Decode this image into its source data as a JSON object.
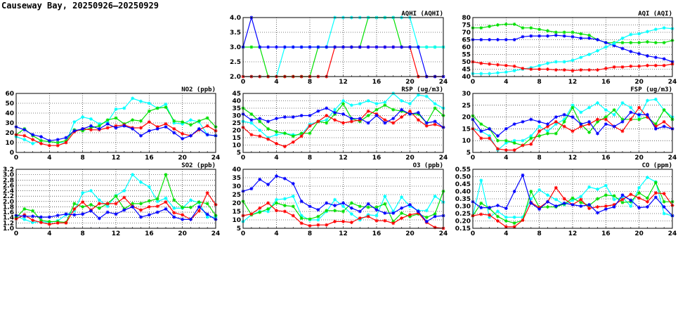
{
  "title": "Causeway Bay, 20250926–20250929",
  "chart_data": [
    {
      "id": "aqhi",
      "type": "line",
      "title": "AQHI (AQHI)",
      "ylim": [
        2,
        4
      ],
      "yticks": [
        "2.0",
        "2.5",
        "3.0",
        "3.5",
        "4.0"
      ],
      "xticks": [
        "0",
        "4",
        "8",
        "12",
        "16",
        "20",
        "24"
      ],
      "xlim": [
        0,
        24
      ],
      "series": [
        {
          "color": "#00e000",
          "values": [
            3,
            3,
            3,
            2,
            2,
            2,
            2,
            2,
            2,
            3,
            3,
            3,
            3,
            3,
            3,
            4,
            4,
            4,
            4,
            3,
            3,
            3,
            3,
            3,
            3
          ]
        },
        {
          "color": "#00ffff",
          "values": [
            2,
            2,
            2,
            2,
            2,
            3,
            3,
            3,
            3,
            3,
            3,
            4,
            4,
            4,
            4,
            4,
            4,
            4,
            4,
            4,
            4,
            3,
            3,
            3,
            3
          ]
        },
        {
          "color": "#ff0000",
          "values": [
            2,
            2,
            2,
            2,
            2,
            2,
            2,
            2,
            2,
            2,
            2,
            3,
            3,
            3,
            3,
            3,
            3,
            3,
            3,
            3,
            3,
            2,
            2,
            2,
            2
          ]
        },
        {
          "color": "#0000ff",
          "values": [
            3,
            4,
            3,
            3,
            3,
            3,
            3,
            3,
            3,
            3,
            3,
            3,
            3,
            3,
            3,
            3,
            3,
            3,
            3,
            3,
            3,
            3,
            2,
            2,
            2
          ]
        }
      ]
    },
    {
      "id": "aqi",
      "type": "line",
      "title": "AQI (AQI)",
      "ylim": [
        40,
        80
      ],
      "yticks": [
        "40",
        "45",
        "50",
        "55",
        "60",
        "65",
        "70",
        "75",
        "80"
      ],
      "xticks": [
        "0",
        "4",
        "8",
        "12",
        "16",
        "20",
        "24"
      ],
      "xlim": [
        0,
        24
      ],
      "series": [
        {
          "color": "#00e000",
          "values": [
            73,
            73,
            74,
            75,
            75.5,
            75.5,
            73,
            73,
            72,
            71,
            70,
            70,
            70,
            69,
            68,
            65,
            63,
            63,
            63,
            63,
            63,
            63.5,
            63,
            63,
            64.5
          ]
        },
        {
          "color": "#0000ff",
          "values": [
            65,
            65,
            65,
            65,
            65,
            65,
            67,
            67.5,
            67.5,
            67.5,
            68,
            67.5,
            67,
            66,
            66,
            65,
            63,
            61,
            59,
            57,
            55.5,
            54,
            53,
            52,
            50
          ]
        },
        {
          "color": "#00ffff",
          "values": [
            42,
            42,
            42,
            42.5,
            43,
            44,
            45,
            46,
            47.5,
            49,
            50,
            50,
            51,
            53,
            55,
            57.5,
            60,
            62.5,
            66,
            68.5,
            69,
            70.5,
            72,
            73,
            72.5
          ]
        },
        {
          "color": "#ff0000",
          "values": [
            50,
            49,
            48.5,
            48,
            47.5,
            47,
            45.5,
            45,
            45,
            45,
            44.5,
            44.5,
            44,
            44.5,
            44.5,
            44.5,
            45.5,
            46.5,
            46.5,
            47,
            47,
            47.5,
            47.5,
            47.5,
            48.5
          ]
        }
      ]
    },
    {
      "id": "no2",
      "type": "line",
      "title": "NO2 (ppb)",
      "ylim": [
        0,
        60
      ],
      "yticks": [
        "0",
        "10",
        "20",
        "30",
        "40",
        "50",
        "60"
      ],
      "xticks": [
        "0",
        "4",
        "8",
        "12",
        "16",
        "20",
        "24"
      ],
      "xlim": [
        0,
        24
      ],
      "series": [
        {
          "color": "#00ffff",
          "values": [
            16,
            13,
            9,
            12,
            11,
            10,
            10,
            31,
            36,
            34,
            29,
            31,
            44,
            45,
            55,
            52,
            50,
            45,
            49,
            30,
            29,
            33,
            31,
            18,
            17
          ]
        },
        {
          "color": "#00e000",
          "values": [
            18,
            24,
            17,
            12,
            11,
            10,
            12,
            23,
            22,
            25,
            27,
            33,
            35,
            29,
            33,
            32,
            42,
            45,
            46,
            32,
            31,
            28,
            32,
            35,
            26
          ]
        },
        {
          "color": "#ff0000",
          "values": [
            18,
            17,
            13,
            9,
            7,
            7,
            10,
            21,
            24,
            23,
            23,
            25,
            27,
            28,
            25,
            25,
            31,
            26,
            29,
            24,
            19,
            17,
            23,
            27,
            22
          ]
        },
        {
          "color": "#0000ff",
          "values": [
            26,
            23,
            18,
            16,
            12,
            13,
            15,
            22,
            24,
            27,
            24,
            29,
            25,
            27,
            24,
            17,
            22,
            24,
            26,
            20,
            14,
            17,
            24,
            18,
            17
          ]
        }
      ]
    },
    {
      "id": "rsp",
      "type": "line",
      "title": "RSP (ug/m3)",
      "ylim": [
        5,
        45
      ],
      "yticks": [
        "5",
        "10",
        "15",
        "20",
        "25",
        "30",
        "35",
        "40",
        "45"
      ],
      "xticks": [
        "0",
        "4",
        "8",
        "12",
        "16",
        "20",
        "24"
      ],
      "xlim": [
        0,
        24
      ],
      "series": [
        {
          "color": "#00ffff",
          "values": [
            26,
            25,
            20,
            15,
            17,
            18,
            17,
            17,
            24,
            26,
            27,
            34,
            40,
            37,
            38,
            40,
            38,
            39,
            45,
            40,
            38,
            44,
            43,
            38,
            35
          ]
        },
        {
          "color": "#00e000",
          "values": [
            35,
            31,
            26,
            21,
            19,
            18,
            16,
            18,
            18,
            26,
            25,
            31,
            38,
            28,
            26,
            30,
            34,
            37,
            34,
            33,
            31,
            31,
            25,
            35,
            30
          ]
        },
        {
          "color": "#ff0000",
          "values": [
            22,
            17,
            16,
            14,
            11,
            9,
            12,
            16,
            23,
            26,
            30,
            27,
            25,
            26,
            27,
            33,
            31,
            27,
            25,
            29,
            33,
            27,
            23,
            24,
            22
          ]
        },
        {
          "color": "#0000ff",
          "values": [
            31,
            27,
            28,
            26,
            28,
            29,
            29,
            30,
            30,
            33,
            35,
            32,
            31,
            28,
            28,
            25,
            30,
            25,
            28,
            34,
            31,
            32,
            25,
            26,
            22
          ]
        }
      ]
    },
    {
      "id": "fsp",
      "type": "line",
      "title": "FSP (ug/m3)",
      "ylim": [
        5,
        30
      ],
      "yticks": [
        "5",
        "10",
        "15",
        "20",
        "25",
        "30"
      ],
      "xticks": [
        "0",
        "4",
        "8",
        "12",
        "16",
        "20",
        "24"
      ],
      "xlim": [
        0,
        24
      ],
      "series": [
        {
          "color": "#00ffff",
          "values": [
            15,
            14,
            12,
            6,
            9,
            10,
            10,
            12,
            16,
            14,
            17,
            19,
            25,
            22,
            24,
            26,
            23,
            21,
            26,
            24,
            20,
            27,
            27.5,
            23,
            20
          ]
        },
        {
          "color": "#00e000",
          "values": [
            20.5,
            17,
            15,
            10,
            10,
            9,
            8,
            11,
            12,
            13,
            13,
            18,
            24,
            17,
            13.5,
            18,
            20,
            23,
            19,
            19,
            19,
            20,
            17,
            23,
            19
          ]
        },
        {
          "color": "#ff0000",
          "values": [
            15,
            11,
            11,
            6.5,
            6,
            6,
            8,
            8.5,
            14,
            16,
            18,
            16,
            14,
            16,
            17,
            19,
            19,
            16,
            14,
            19,
            24,
            20,
            16,
            18,
            15
          ]
        },
        {
          "color": "#0000ff",
          "values": [
            19,
            14,
            15,
            12,
            15,
            17,
            18,
            19,
            18,
            17,
            20,
            21,
            20,
            17,
            18,
            13,
            17,
            16,
            18,
            22,
            21,
            21,
            15,
            16,
            15
          ]
        }
      ]
    },
    {
      "id": "so2",
      "type": "line",
      "title": "SO2 (ppb)",
      "ylim": [
        1.0,
        3.2
      ],
      "yticks": [
        "1.0",
        "1.2",
        "1.4",
        "1.6",
        "1.8",
        "2.0",
        "2.2",
        "2.4",
        "2.6",
        "2.8",
        "3.0",
        "3.2"
      ],
      "xticks": [
        "0",
        "4",
        "8",
        "12",
        "16",
        "20",
        "24"
      ],
      "xlim": [
        0,
        24
      ],
      "series": [
        {
          "color": "#00ffff",
          "values": [
            1.45,
            1.33,
            1.22,
            1.25,
            1.22,
            1.28,
            1.5,
            1.65,
            2.32,
            2.4,
            2.05,
            1.82,
            2.22,
            2.4,
            3.0,
            2.72,
            2.55,
            2.0,
            2.12,
            1.75,
            1.75,
            2.05,
            1.95,
            1.42,
            1.42
          ]
        },
        {
          "color": "#00e000",
          "values": [
            1.4,
            1.72,
            1.65,
            1.3,
            1.25,
            1.25,
            1.22,
            1.92,
            1.8,
            1.88,
            1.75,
            1.92,
            2.2,
            1.72,
            1.92,
            1.92,
            2.02,
            2.1,
            3.0,
            2.05,
            1.78,
            1.78,
            1.98,
            1.92,
            1.48
          ]
        },
        {
          "color": "#ff0000",
          "values": [
            1.35,
            1.5,
            1.3,
            1.22,
            1.15,
            1.2,
            1.2,
            1.72,
            1.98,
            1.68,
            1.92,
            1.92,
            1.92,
            2.15,
            1.82,
            1.68,
            1.8,
            1.82,
            1.98,
            1.58,
            1.5,
            1.33,
            1.65,
            2.32,
            1.88
          ]
        },
        {
          "color": "#0000ff",
          "values": [
            1.48,
            1.45,
            1.45,
            1.42,
            1.42,
            1.48,
            1.53,
            1.5,
            1.53,
            1.65,
            1.37,
            1.6,
            1.53,
            1.68,
            1.8,
            1.42,
            1.5,
            1.6,
            1.72,
            1.42,
            1.33,
            1.33,
            1.8,
            1.52,
            1.33
          ]
        }
      ]
    },
    {
      "id": "o3",
      "type": "line",
      "title": "O3 (ppb)",
      "ylim": [
        5,
        40
      ],
      "yticks": [
        "5",
        "10",
        "15",
        "20",
        "25",
        "30",
        "35",
        "40"
      ],
      "xticks": [
        "0",
        "4",
        "8",
        "12",
        "16",
        "20",
        "24"
      ],
      "xlim": [
        0,
        24
      ],
      "series": [
        {
          "color": "#00ffff",
          "values": [
            9,
            13,
            15,
            15,
            22,
            22.5,
            24,
            12.5,
            10,
            10,
            15,
            22,
            18,
            13.5,
            10,
            13,
            12.5,
            24,
            15,
            23.5,
            18,
            15.5,
            15.5,
            24,
            20.5
          ]
        },
        {
          "color": "#00e000",
          "values": [
            21,
            13,
            14.5,
            16.5,
            20,
            18.5,
            18,
            11,
            10.5,
            12,
            15.5,
            15.5,
            15,
            20,
            18,
            17.5,
            17.5,
            19.5,
            9,
            14,
            12,
            13.5,
            11.5,
            13.5,
            27
          ]
        },
        {
          "color": "#ff0000",
          "values": [
            12.5,
            13.5,
            17,
            20,
            15.5,
            15,
            12.5,
            8,
            6.5,
            7,
            7,
            9,
            9,
            8.5,
            11,
            12,
            9.5,
            9.5,
            8,
            11,
            13,
            14,
            8.5,
            5.5,
            5
          ]
        },
        {
          "color": "#0000ff",
          "values": [
            27,
            28.5,
            34,
            31,
            36,
            34.5,
            31.5,
            21,
            18,
            16,
            20,
            18.5,
            20,
            17,
            15,
            19.5,
            16,
            14,
            14,
            17,
            19,
            15,
            9,
            12,
            12.5
          ]
        }
      ]
    },
    {
      "id": "co",
      "type": "line",
      "title": "CO (ppm)",
      "ylim": [
        0.15,
        0.55
      ],
      "yticks": [
        "0.15",
        "0.20",
        "0.25",
        "0.30",
        "0.35",
        "0.40",
        "0.45",
        "0.50",
        "0.55"
      ],
      "xticks": [
        "0",
        "4",
        "8",
        "12",
        "16",
        "20",
        "24"
      ],
      "xlim": [
        0,
        24
      ],
      "series": [
        {
          "color": "#00ffff",
          "values": [
            0.235,
            0.475,
            0.225,
            0.265,
            0.225,
            0.225,
            0.225,
            0.35,
            0.41,
            0.375,
            0.345,
            0.31,
            0.34,
            0.365,
            0.43,
            0.415,
            0.44,
            0.345,
            0.36,
            0.3,
            0.425,
            0.495,
            0.465,
            0.25,
            0.235
          ]
        },
        {
          "color": "#00e000",
          "values": [
            0.235,
            0.32,
            0.285,
            0.23,
            0.2,
            0.185,
            0.205,
            0.4,
            0.29,
            0.295,
            0.295,
            0.315,
            0.355,
            0.325,
            0.305,
            0.35,
            0.375,
            0.37,
            0.325,
            0.33,
            0.39,
            0.355,
            0.46,
            0.33,
            0.33
          ]
        },
        {
          "color": "#ff0000",
          "values": [
            0.235,
            0.245,
            0.24,
            0.2,
            0.16,
            0.16,
            0.205,
            0.325,
            0.29,
            0.33,
            0.425,
            0.35,
            0.31,
            0.345,
            0.285,
            0.295,
            0.3,
            0.31,
            0.345,
            0.38,
            0.355,
            0.33,
            0.39,
            0.385,
            0.305
          ]
        },
        {
          "color": "#0000ff",
          "values": [
            0.33,
            0.29,
            0.29,
            0.305,
            0.285,
            0.4,
            0.51,
            0.32,
            0.28,
            0.33,
            0.3,
            0.32,
            0.31,
            0.3,
            0.31,
            0.255,
            0.28,
            0.295,
            0.375,
            0.34,
            0.29,
            0.295,
            0.36,
            0.295,
            0.235
          ]
        }
      ]
    }
  ]
}
